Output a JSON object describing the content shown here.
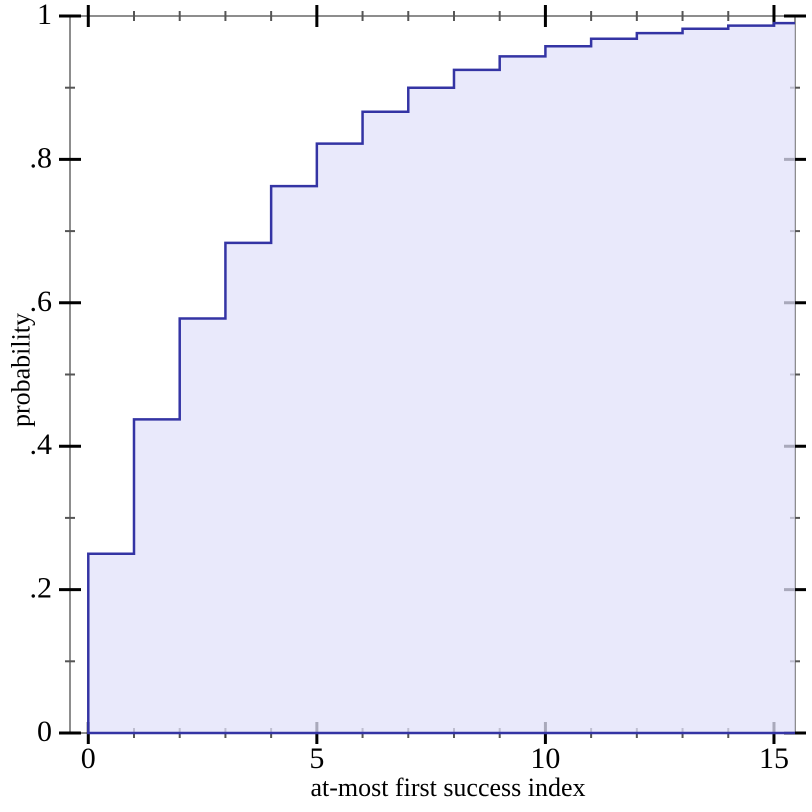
{
  "chart_data": {
    "type": "area",
    "subtype": "step-cdf",
    "title": "",
    "xlabel": "at-most first success index",
    "ylabel": "probability",
    "x": [
      0,
      1,
      2,
      3,
      4,
      5,
      6,
      7,
      8,
      9,
      10,
      11,
      12,
      13,
      14,
      15
    ],
    "y": [
      0.25,
      0.4375,
      0.5781,
      0.6836,
      0.7627,
      0.822,
      0.8665,
      0.8999,
      0.9249,
      0.9437,
      0.9578,
      0.9683,
      0.9762,
      0.9822,
      0.9866,
      0.99
    ],
    "xlim": [
      -0.4,
      15.46
    ],
    "ylim": [
      0,
      1
    ],
    "grid": "off",
    "legend": "none",
    "x_major_ticks": [
      0,
      5,
      10,
      15
    ],
    "x_major_labels": [
      "0",
      "5",
      "10",
      "15"
    ],
    "x_minor_ticks": [
      1,
      2,
      3,
      4,
      6,
      7,
      8,
      9,
      11,
      12,
      13,
      14
    ],
    "y_major_ticks": [
      0,
      0.2,
      0.4,
      0.6,
      0.8,
      1
    ],
    "y_major_labels": [
      "0",
      ".2",
      ".4",
      ".6",
      ".8",
      "1"
    ],
    "y_minor_ticks": [
      0.1,
      0.3,
      0.5,
      0.7,
      0.9
    ],
    "colors": {
      "line": "#3434a4",
      "fill": "rgba(226,226,250,0.75)",
      "frame": "#8d8d8d",
      "major_tick": "#000000",
      "minor_tick": "#555555",
      "text": "#000000",
      "background": "#ffffff"
    }
  }
}
